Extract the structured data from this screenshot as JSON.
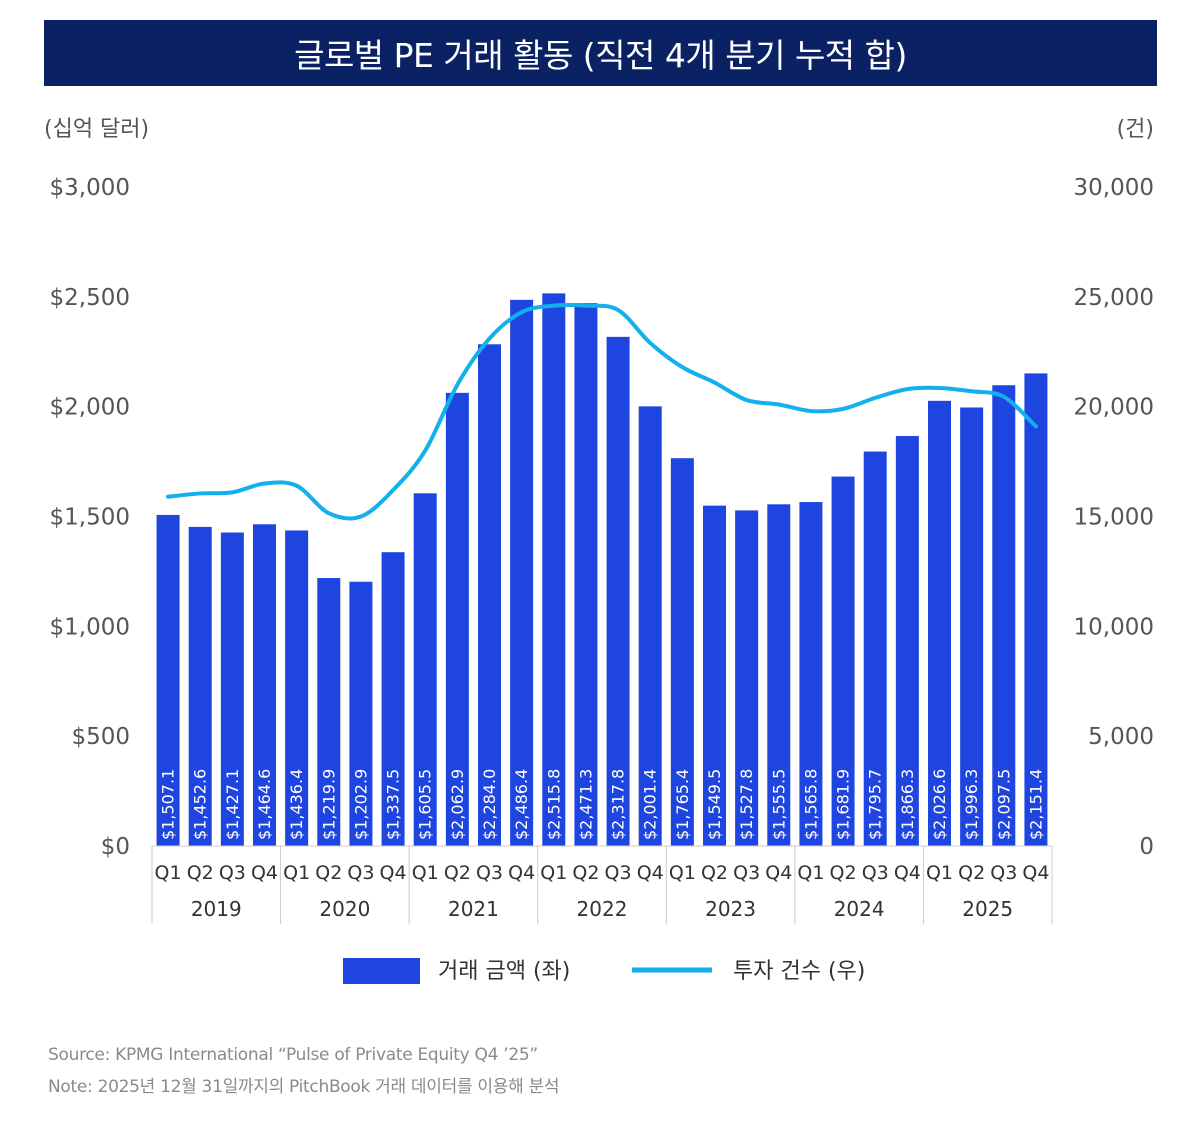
{
  "title": "글로벌 PE 거래 활동 (직전 4개 분기 누적 합)",
  "left_unit": "(십억 달러)",
  "right_unit": "(건)",
  "notes": {
    "source": "Source: KPMG International “Pulse of Private Equity Q4 ’25”",
    "note": "Note: 2025년 12월 31일까지의 PitchBook 거래 데이터를 이용해 분석"
  },
  "colors": {
    "bar": "#1f45e0",
    "line": "#12b0ec",
    "title_bg": "#0a2263"
  },
  "chart_data": {
    "type": "bar",
    "title": "글로벌 PE 거래 활동 (직전 4개 분기 누적 합)",
    "quarters": [
      "Q1",
      "Q2",
      "Q3",
      "Q4",
      "Q1",
      "Q2",
      "Q3",
      "Q4",
      "Q1",
      "Q2",
      "Q3",
      "Q4",
      "Q1",
      "Q2",
      "Q3",
      "Q4",
      "Q1",
      "Q2",
      "Q3",
      "Q4",
      "Q1",
      "Q2",
      "Q3",
      "Q4",
      "Q1",
      "Q2",
      "Q3",
      "Q4"
    ],
    "years": [
      "2019",
      "2020",
      "2021",
      "2022",
      "2023",
      "2024",
      "2025"
    ],
    "y_left": {
      "label": "(십억 달러)",
      "range": [
        0,
        3000
      ],
      "ticks": [
        "$0",
        "$500",
        "$1,000",
        "$1,500",
        "$2,000",
        "$2,500",
        "$3,000"
      ]
    },
    "y_right": {
      "label": "(건)",
      "range": [
        0,
        30000
      ],
      "ticks": [
        "0",
        "5,000",
        "10,000",
        "15,000",
        "20,000",
        "25,000",
        "30,000"
      ]
    },
    "grid": false,
    "legend_position": "bottom",
    "series": [
      {
        "name": "거래 금액 (좌)",
        "type": "bar",
        "axis": "left",
        "values": [
          1507.1,
          1452.6,
          1427.1,
          1464.6,
          1436.4,
          1219.9,
          1202.9,
          1337.5,
          1605.5,
          2062.9,
          2284.0,
          2486.4,
          2515.8,
          2471.3,
          2317.8,
          2001.4,
          1765.4,
          1549.5,
          1527.8,
          1555.5,
          1565.8,
          1681.9,
          1795.7,
          1866.3,
          2026.6,
          1996.3,
          2097.5,
          2151.4
        ],
        "labels": [
          "$1,507.1",
          "$1,452.6",
          "$1,427.1",
          "$1,464.6",
          "$1,436.4",
          "$1,219.9",
          "$1,202.9",
          "$1,337.5",
          "$1,605.5",
          "$2,062.9",
          "$2,284.0",
          "$2,486.4",
          "$2,515.8",
          "$2,471.3",
          "$2,317.8",
          "$2,001.4",
          "$1,765.4",
          "$1,549.5",
          "$1,527.8",
          "$1,555.5",
          "$1,565.8",
          "$1,681.9",
          "$1,795.7",
          "$1,866.3",
          "$2,026.6",
          "$1,996.3",
          "$2,097.5",
          "$2,151.4"
        ]
      },
      {
        "name": "투자 건수 (우)",
        "type": "line",
        "axis": "right",
        "values": [
          15900,
          16050,
          16100,
          16500,
          16400,
          15150,
          15000,
          16200,
          18000,
          21000,
          23100,
          24300,
          24600,
          24600,
          24400,
          22900,
          21800,
          21100,
          20300,
          20100,
          19800,
          19900,
          20400,
          20800,
          20850,
          20700,
          20450,
          19100
        ]
      }
    ]
  }
}
